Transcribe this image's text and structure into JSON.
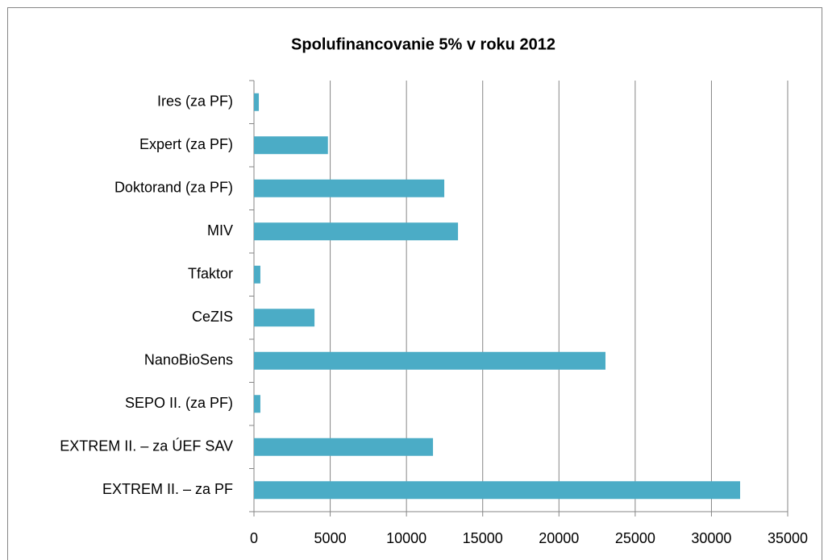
{
  "chart_data": {
    "type": "barh",
    "title": "Spolufinancovanie 5% v roku 2012",
    "categories": [
      "EXTREM II. – za PF",
      "EXTREM II. – za ÚEF SAV",
      "SEPO II. (za PF)",
      "NanoBioSens",
      "CeZIS",
      "Tfaktor",
      "MIV",
      "Doktorand (za PF)",
      "Expert (za PF)",
      "Ires (za PF)"
    ],
    "values": [
      31880,
      11740,
      420,
      23050,
      3970,
      420,
      13380,
      12480,
      4850,
      320
    ],
    "color": "#4bacc6",
    "xlim": [
      0,
      35000
    ],
    "xticks": [
      0,
      5000,
      10000,
      15000,
      20000,
      25000,
      30000,
      35000
    ],
    "grid": true
  }
}
